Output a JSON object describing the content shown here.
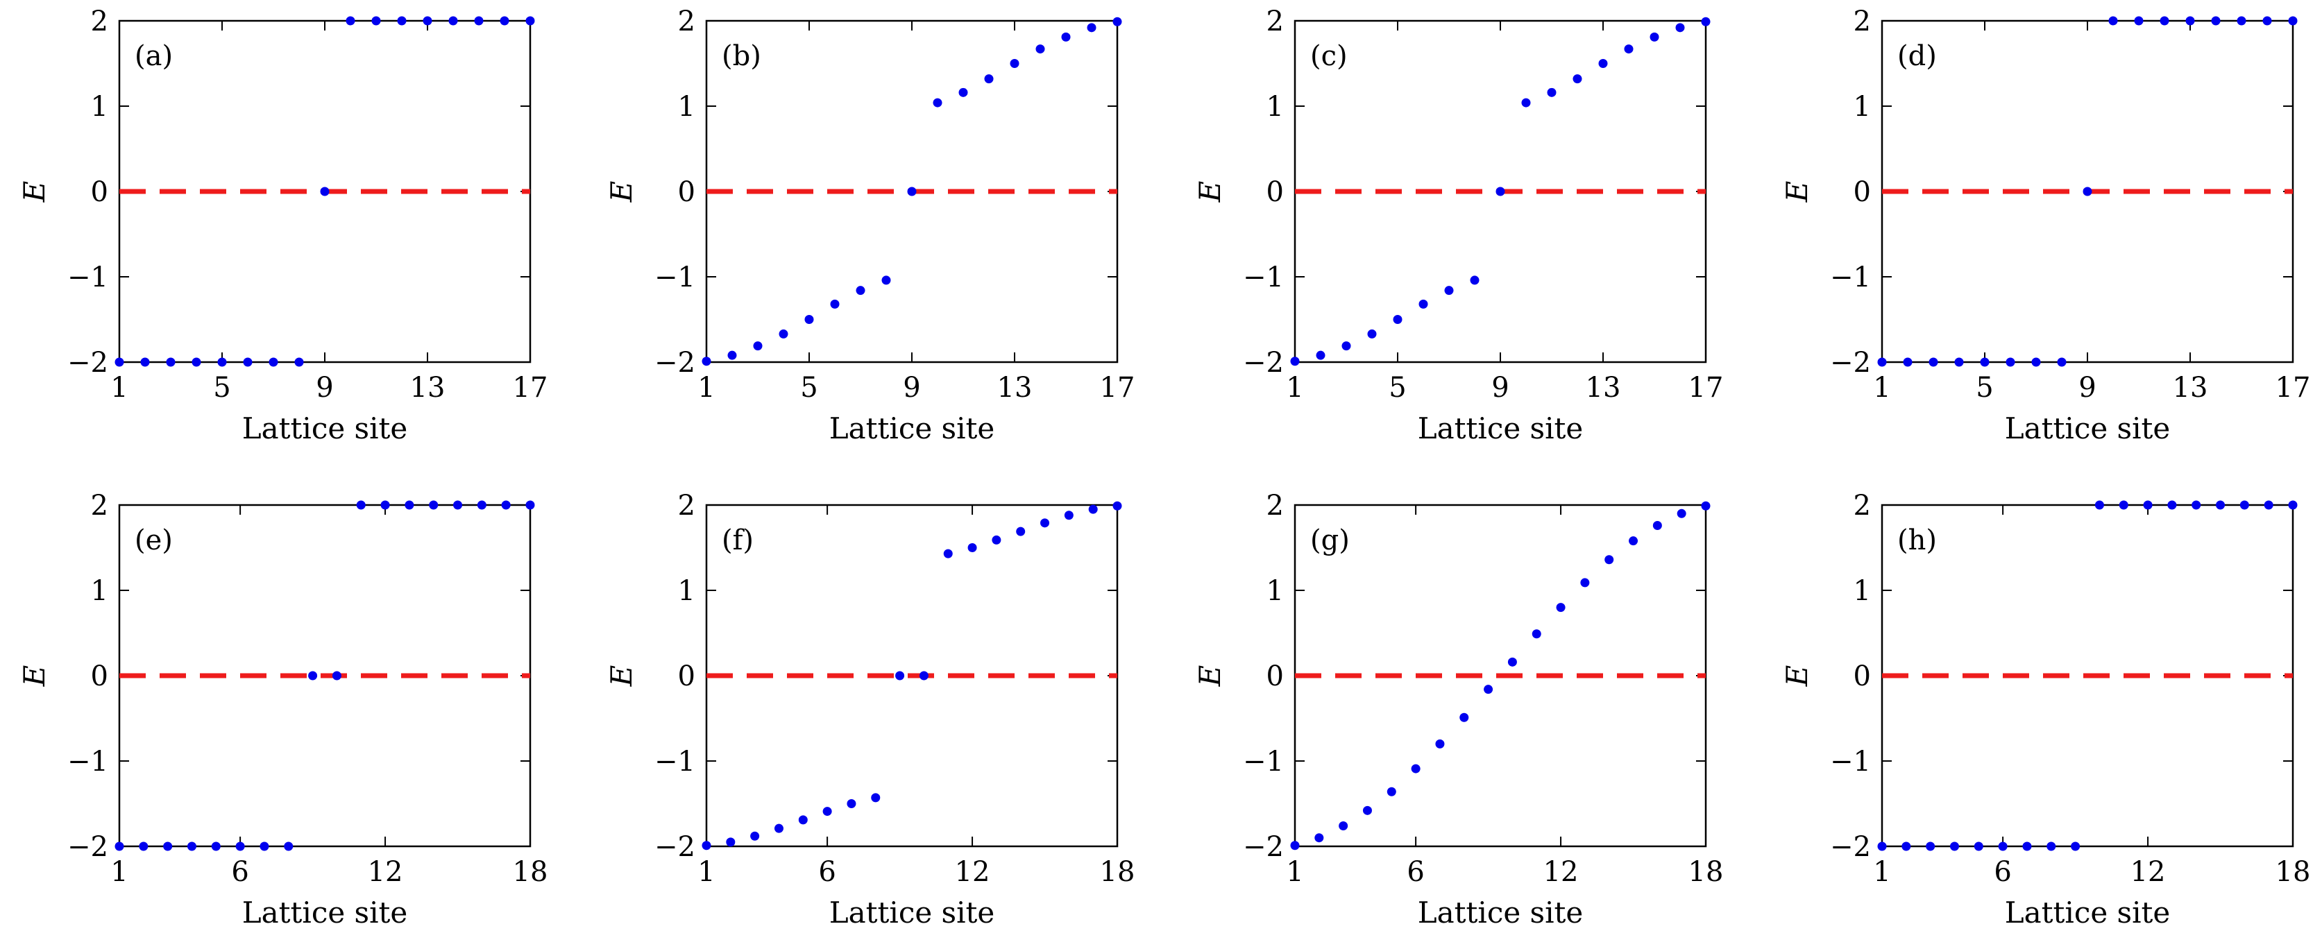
{
  "figure": {
    "colors": {
      "points": "#0000ee",
      "zero_line": "#ee1c1c",
      "axes": "#000000"
    }
  },
  "chart_data": [
    {
      "type": "scatter",
      "panel": "(a)",
      "xlabel": "Lattice site",
      "ylabel": "E",
      "xlim": [
        1,
        17
      ],
      "ylim": [
        -2,
        2
      ],
      "xticks": [
        "1",
        "5",
        "9",
        "13",
        "17"
      ],
      "yticks": [
        "−2",
        "−1",
        "0",
        "1",
        "2"
      ],
      "reference_line": {
        "y": 0,
        "style": "dashed"
      },
      "x": [
        1,
        2,
        3,
        4,
        5,
        6,
        7,
        8,
        9,
        10,
        11,
        12,
        13,
        14,
        15,
        16,
        17
      ],
      "y": [
        -2,
        -2,
        -2,
        -2,
        -2,
        -2,
        -2,
        -2,
        0,
        2,
        2,
        2,
        2,
        2,
        2,
        2,
        2
      ]
    },
    {
      "type": "scatter",
      "panel": "(b)",
      "xlabel": "Lattice site",
      "ylabel": "E",
      "xlim": [
        1,
        17
      ],
      "ylim": [
        -2,
        2
      ],
      "xticks": [
        "1",
        "5",
        "9",
        "13",
        "17"
      ],
      "yticks": [
        "−2",
        "−1",
        "0",
        "1",
        "2"
      ],
      "reference_line": {
        "y": 0,
        "style": "dashed"
      },
      "x": [
        1,
        2,
        3,
        4,
        5,
        6,
        7,
        8,
        9,
        10,
        11,
        12,
        13,
        14,
        15,
        16,
        17
      ],
      "y": [
        -1.99,
        -1.92,
        -1.81,
        -1.67,
        -1.5,
        -1.32,
        -1.16,
        -1.04,
        0,
        1.04,
        1.16,
        1.32,
        1.5,
        1.67,
        1.81,
        1.92,
        1.99
      ]
    },
    {
      "type": "scatter",
      "panel": "(c)",
      "xlabel": "Lattice site",
      "ylabel": "E",
      "xlim": [
        1,
        17
      ],
      "ylim": [
        -2,
        2
      ],
      "xticks": [
        "1",
        "5",
        "9",
        "13",
        "17"
      ],
      "yticks": [
        "−2",
        "−1",
        "0",
        "1",
        "2"
      ],
      "reference_line": {
        "y": 0,
        "style": "dashed"
      },
      "x": [
        1,
        2,
        3,
        4,
        5,
        6,
        7,
        8,
        9,
        10,
        11,
        12,
        13,
        14,
        15,
        16,
        17
      ],
      "y": [
        -1.99,
        -1.92,
        -1.81,
        -1.67,
        -1.5,
        -1.32,
        -1.16,
        -1.04,
        0,
        1.04,
        1.16,
        1.32,
        1.5,
        1.67,
        1.81,
        1.92,
        1.99
      ]
    },
    {
      "type": "scatter",
      "panel": "(d)",
      "xlabel": "Lattice site",
      "ylabel": "E",
      "xlim": [
        1,
        17
      ],
      "ylim": [
        -2,
        2
      ],
      "xticks": [
        "1",
        "5",
        "9",
        "13",
        "17"
      ],
      "yticks": [
        "−2",
        "−1",
        "0",
        "1",
        "2"
      ],
      "reference_line": {
        "y": 0,
        "style": "dashed"
      },
      "x": [
        1,
        2,
        3,
        4,
        5,
        6,
        7,
        8,
        9,
        10,
        11,
        12,
        13,
        14,
        15,
        16,
        17
      ],
      "y": [
        -2,
        -2,
        -2,
        -2,
        -2,
        -2,
        -2,
        -2,
        0,
        2,
        2,
        2,
        2,
        2,
        2,
        2,
        2
      ]
    },
    {
      "type": "scatter",
      "panel": "(e)",
      "xlabel": "Lattice site",
      "ylabel": "E",
      "xlim": [
        1,
        18
      ],
      "ylim": [
        -2,
        2
      ],
      "xticks": [
        "1",
        "6",
        "12",
        "18"
      ],
      "yticks": [
        "−2",
        "−1",
        "0",
        "1",
        "2"
      ],
      "reference_line": {
        "y": 0,
        "style": "dashed"
      },
      "x": [
        1,
        2,
        3,
        4,
        5,
        6,
        7,
        8,
        9,
        10,
        11,
        12,
        13,
        14,
        15,
        16,
        17,
        18
      ],
      "y": [
        -2,
        -2,
        -2,
        -2,
        -2,
        -2,
        -2,
        -2,
        0,
        0,
        2,
        2,
        2,
        2,
        2,
        2,
        2,
        2
      ]
    },
    {
      "type": "scatter",
      "panel": "(f)",
      "xlabel": "Lattice site",
      "ylabel": "E",
      "xlim": [
        1,
        18
      ],
      "ylim": [
        -2,
        2
      ],
      "xticks": [
        "1",
        "6",
        "12",
        "18"
      ],
      "yticks": [
        "−2",
        "−1",
        "0",
        "1",
        "2"
      ],
      "reference_line": {
        "y": 0,
        "style": "dashed"
      },
      "x": [
        1,
        2,
        3,
        4,
        5,
        6,
        7,
        8,
        9,
        10,
        11,
        12,
        13,
        14,
        15,
        16,
        17,
        18
      ],
      "y": [
        -1.99,
        -1.95,
        -1.88,
        -1.79,
        -1.69,
        -1.59,
        -1.5,
        -1.43,
        0,
        0,
        1.43,
        1.5,
        1.59,
        1.69,
        1.79,
        1.88,
        1.95,
        1.99
      ]
    },
    {
      "type": "scatter",
      "panel": "(g)",
      "xlabel": "Lattice site",
      "ylabel": "E",
      "xlim": [
        1,
        18
      ],
      "ylim": [
        -2,
        2
      ],
      "xticks": [
        "1",
        "6",
        "12",
        "18"
      ],
      "yticks": [
        "−2",
        "−1",
        "0",
        "1",
        "2"
      ],
      "reference_line": {
        "y": 0,
        "style": "dashed"
      },
      "x": [
        1,
        2,
        3,
        4,
        5,
        6,
        7,
        8,
        9,
        10,
        11,
        12,
        13,
        14,
        15,
        16,
        17,
        18
      ],
      "y": [
        -1.99,
        -1.9,
        -1.76,
        -1.58,
        -1.36,
        -1.09,
        -0.8,
        -0.49,
        -0.16,
        0.16,
        0.49,
        0.8,
        1.09,
        1.36,
        1.58,
        1.76,
        1.9,
        1.99
      ]
    },
    {
      "type": "scatter",
      "panel": "(h)",
      "xlabel": "Lattice site",
      "ylabel": "E",
      "xlim": [
        1,
        18
      ],
      "ylim": [
        -2,
        2
      ],
      "xticks": [
        "1",
        "6",
        "12",
        "18"
      ],
      "yticks": [
        "−2",
        "−1",
        "0",
        "1",
        "2"
      ],
      "reference_line": {
        "y": 0,
        "style": "dashed"
      },
      "x": [
        1,
        2,
        3,
        4,
        5,
        6,
        7,
        8,
        9,
        10,
        11,
        12,
        13,
        14,
        15,
        16,
        17,
        18
      ],
      "y": [
        -2,
        -2,
        -2,
        -2,
        -2,
        -2,
        -2,
        -2,
        -2,
        2,
        2,
        2,
        2,
        2,
        2,
        2,
        2,
        2
      ]
    }
  ]
}
